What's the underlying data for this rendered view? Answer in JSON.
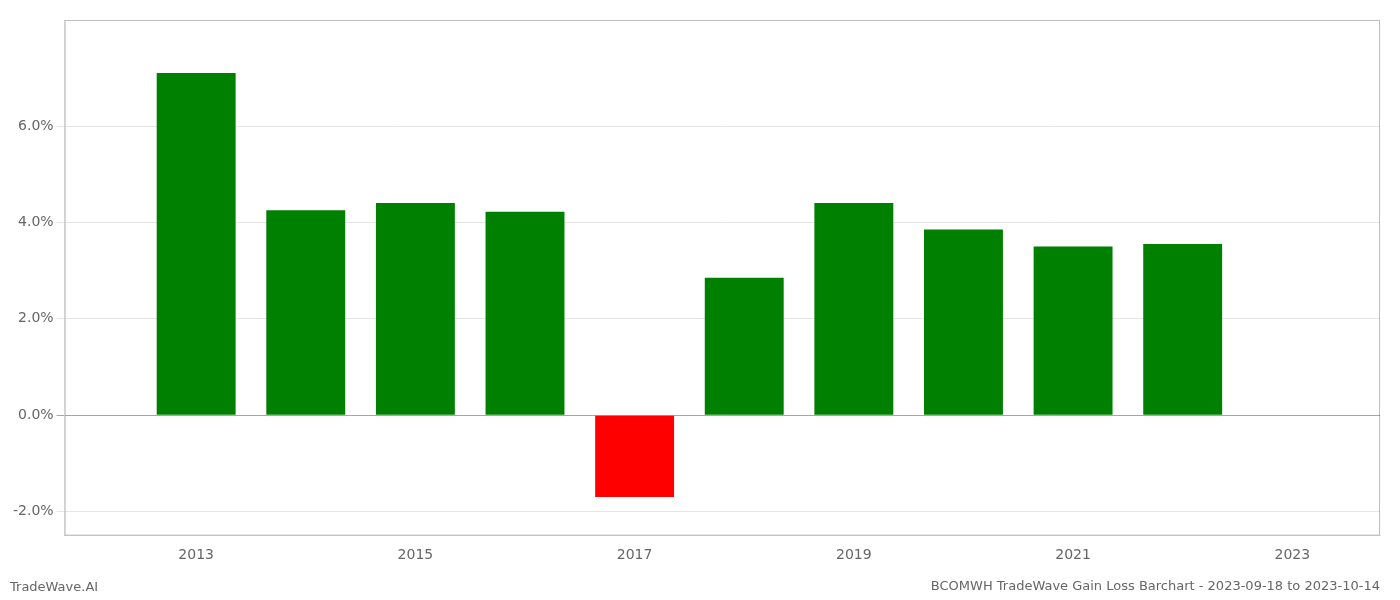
{
  "chart_data": {
    "type": "bar",
    "title": "BCOMWH TradeWave Gain Loss Barchart - 2023-09-18 to 2023-10-14",
    "annotations": [
      "TradeWave.AI"
    ],
    "x": [
      2013,
      2014,
      2015,
      2016,
      2017,
      2018,
      2019,
      2020,
      2021,
      2022
    ],
    "values": [
      0.071,
      0.0425,
      0.044,
      0.0422,
      -0.017,
      0.0285,
      0.044,
      0.0385,
      0.035,
      0.0355
    ],
    "colors": [
      "#008000",
      "#008000",
      "#008000",
      "#008000",
      "#ff0000",
      "#008000",
      "#008000",
      "#008000",
      "#008000",
      "#008000"
    ],
    "xlim": [
      2011.8,
      2023.8
    ],
    "xticks": [
      2013,
      2015,
      2017,
      2019,
      2021,
      2023
    ],
    "ylim": [
      -0.025,
      0.082
    ],
    "yticks": [
      {
        "value": -0.02,
        "label": "-2.0%"
      },
      {
        "value": 0.0,
        "label": "0.0%"
      },
      {
        "value": 0.02,
        "label": "2.0%"
      },
      {
        "value": 0.04,
        "label": "4.0%"
      },
      {
        "value": 0.06,
        "label": "6.0%"
      }
    ],
    "grid": true
  }
}
